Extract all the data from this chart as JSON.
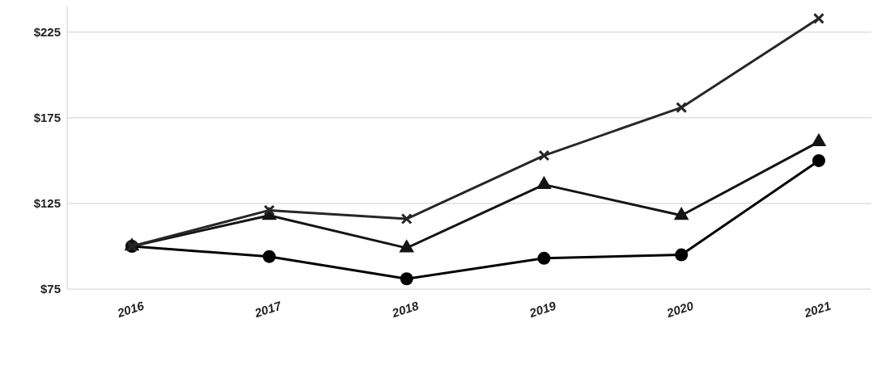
{
  "chart_data": {
    "type": "line",
    "categories": [
      "2016",
      "2017",
      "2018",
      "2019",
      "2020",
      "2021"
    ],
    "series": [
      {
        "color": "#000000",
        "marker": "circle",
        "values": [
          100,
          94,
          81,
          93,
          95,
          150
        ]
      },
      {
        "color": "#141414",
        "marker": "triangle",
        "values": [
          100,
          118,
          99,
          136,
          118,
          161
        ]
      },
      {
        "color": "#262626",
        "marker": "cross",
        "values": [
          100,
          121,
          116,
          153,
          181,
          233
        ]
      }
    ],
    "ylim": [
      75,
      240
    ],
    "yticks": [
      {
        "value": 75,
        "label": "$75"
      },
      {
        "value": 125,
        "label": "$125"
      },
      {
        "value": 175,
        "label": "$175"
      },
      {
        "value": 225,
        "label": "$225"
      }
    ],
    "grid": "y",
    "line_style": "solid"
  }
}
